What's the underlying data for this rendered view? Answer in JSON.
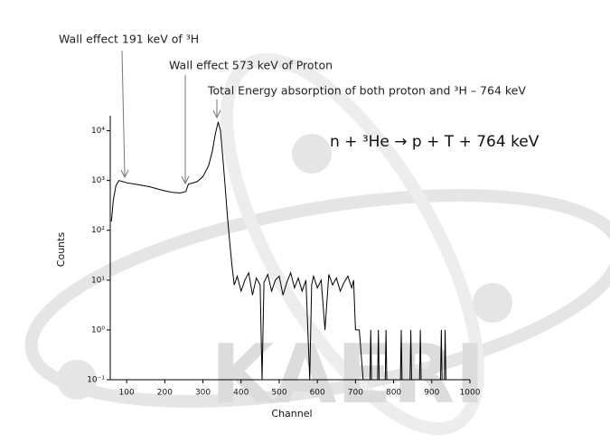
{
  "chart_data": {
    "type": "line",
    "color": "#000000",
    "ylog": true,
    "grid": false,
    "xlabel": "Channel",
    "ylabel": "Counts",
    "annotations": [
      "Wall effect 191 keV of ³H",
      "Wall effect 573 keV of Proton",
      "Total Energy absorption of both proton and ³H – 764 keV",
      "n + ³He → p + T + 764 keV"
    ],
    "watermark": "KAERI",
    "xlim": [
      57,
      1000
    ],
    "xticks": [
      100,
      200,
      300,
      400,
      500,
      600,
      700,
      800,
      900,
      1000
    ],
    "ylim": [
      0.1,
      20000
    ],
    "yticks": [
      {
        "value": 0.1,
        "label": "10⁻¹"
      },
      {
        "value": 1,
        "label": "10⁰"
      },
      {
        "value": 10,
        "label": "10¹"
      },
      {
        "value": 100,
        "label": "10²"
      },
      {
        "value": 1000,
        "label": "10³"
      },
      {
        "value": 10000,
        "label": "10⁴"
      }
    ],
    "x": [
      60,
      65,
      72,
      80,
      90,
      100,
      120,
      140,
      160,
      180,
      200,
      220,
      240,
      255,
      262,
      270,
      285,
      300,
      315,
      325,
      333,
      340,
      346,
      352,
      358,
      364,
      370,
      376,
      382,
      390,
      400,
      410,
      420,
      430,
      440,
      450,
      455,
      460,
      470,
      480,
      490,
      500,
      510,
      520,
      530,
      540,
      550,
      560,
      570,
      580,
      585,
      590,
      600,
      610,
      620,
      630,
      640,
      650,
      660,
      670,
      680,
      690,
      695,
      700,
      710,
      720,
      738,
      740,
      742,
      758,
      760,
      762,
      778,
      780,
      782,
      818,
      820,
      822,
      843,
      845,
      847,
      868,
      870,
      872,
      923,
      925,
      927,
      933,
      935,
      937,
      1000
    ],
    "values": [
      150,
      400,
      800,
      1000,
      950,
      900,
      850,
      800,
      750,
      680,
      620,
      580,
      560,
      600,
      850,
      880,
      950,
      1200,
      2000,
      4000,
      9000,
      15000,
      10000,
      3000,
      800,
      200,
      60,
      20,
      8,
      12,
      6,
      10,
      14,
      5,
      11,
      8,
      0.1,
      9,
      13,
      6,
      10,
      12,
      5,
      9,
      14,
      7,
      11,
      6,
      10,
      0.1,
      8,
      12,
      7,
      10,
      1,
      13,
      8,
      11,
      6,
      9,
      12,
      7,
      10,
      1,
      1,
      0.1,
      0.1,
      1,
      0.1,
      0.1,
      1,
      0.1,
      0.1,
      1,
      0.1,
      0.1,
      1,
      0.1,
      0.1,
      1,
      0.1,
      0.1,
      1,
      0.1,
      0.1,
      1,
      0.1,
      0.1,
      1,
      0.1,
      0.1
    ]
  }
}
